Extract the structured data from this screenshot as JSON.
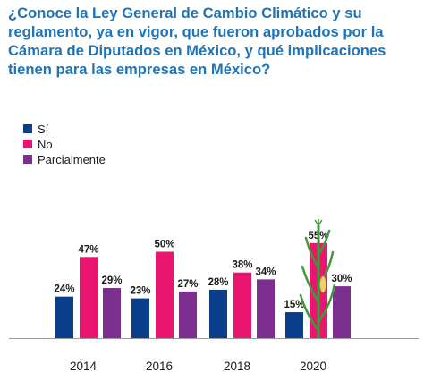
{
  "title": "¿Conoce la Ley General de Cambio Climático y su reglamento, ya en vigor, que fueron aprobados por la Cámara de Diputados en México, y qué implicaciones tienen para las empresas en México?",
  "colors": {
    "si": "#0b3e8a",
    "no": "#e8166e",
    "parcialmente": "#7c2f8e",
    "title": "#1f73b7",
    "plant": "#3f9a3a"
  },
  "icons": {
    "decoration": "corn-plant-icon"
  },
  "chart_data": {
    "type": "bar",
    "categories": [
      "2014",
      "2016",
      "2018",
      "2020"
    ],
    "series": [
      {
        "name": "Sí",
        "values": [
          24,
          23,
          28,
          15
        ],
        "labels": [
          "24%",
          "23%",
          "28%",
          "15%"
        ]
      },
      {
        "name": "No",
        "values": [
          47,
          50,
          38,
          55
        ],
        "labels": [
          "47%",
          "50%",
          "38%",
          "55%"
        ]
      },
      {
        "name": "Parcialmente",
        "values": [
          29,
          27,
          34,
          30
        ],
        "labels": [
          "29%",
          "27%",
          "34%",
          "30%"
        ]
      }
    ],
    "ylim": [
      0,
      60
    ],
    "legend": "top-left"
  }
}
